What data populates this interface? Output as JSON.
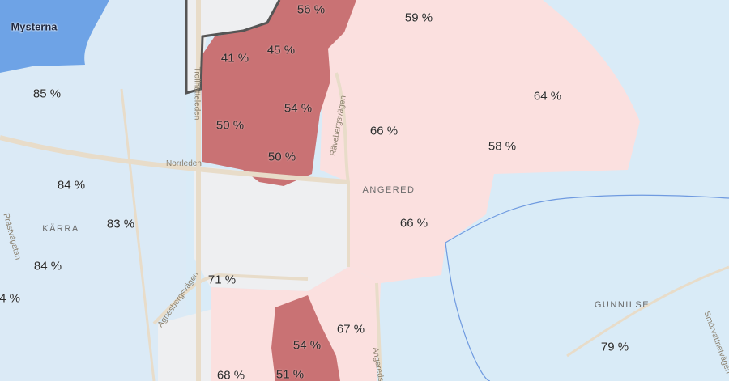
{
  "map": {
    "colors": {
      "water": "#d9ebf7",
      "area_high": "#dbeaf6",
      "area_pink_light": "#fbe0df",
      "area_pink_mid": "#f6d5d4",
      "area_red_dark": "#c97274",
      "area_gray": "#eeeff1",
      "area_mysterna": "#6ea3e6",
      "road": "#e8dcc9",
      "boundary": "#555555",
      "river": "#6f9ae0"
    },
    "places": {
      "mysterna": "Mysterna",
      "angered": "ANGERED",
      "karra": "KÄRRA",
      "gunnilse": "GUNNILSE"
    },
    "roads": {
      "trollhatteleden": "Trollhätteleden",
      "norrleden": "Norrleden",
      "ravebergsvagen": "Rävebergsvägen",
      "agnesbergsvagen": "Agnesbergsvägen",
      "angeredsvagen": "Angereds",
      "pahlvegatan": "Prästvägatan",
      "smorvattnetvagen": "Smörvattnetvägen"
    },
    "percent_labels": [
      "56 %",
      "59 %",
      "41 %",
      "45 %",
      "85 %",
      "64 %",
      "54 %",
      "66 %",
      "50 %",
      "58 %",
      "50 %",
      "84 %",
      "83 %",
      "66 %",
      "84 %",
      "71 %",
      "4 %",
      "67 %",
      "54 %",
      "79 %",
      "68 %",
      "51 %"
    ]
  }
}
